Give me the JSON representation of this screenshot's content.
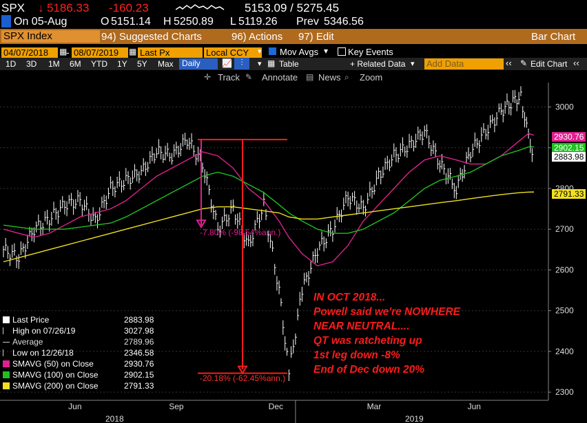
{
  "header": {
    "ticker": "SPX",
    "last": "5186.33",
    "change": "-160.23",
    "bid_ask": "5153.09 / 5275.45",
    "date_label": "On 05-Aug",
    "open_label": "O",
    "open": "5151.14",
    "high_label": "H",
    "high": "5250.89",
    "low_label": "L",
    "low": "5119.26",
    "prev_label": "Prev",
    "prev": "5346.56"
  },
  "menu": {
    "security": "SPX Index",
    "suggested": "94) Suggested Charts",
    "actions": "96) Actions",
    "edit": "97) Edit",
    "bar_chart": "Bar Chart"
  },
  "controls": {
    "start_date": "04/07/2018",
    "end_date": "08/07/2019",
    "price_field": "Last Px",
    "currency": "Local CCY",
    "mov_avgs": "Mov Avgs",
    "key_events": "Key Events",
    "periods": [
      "1D",
      "3D",
      "1M",
      "6M",
      "YTD",
      "1Y",
      "5Y",
      "Max"
    ],
    "frequency": "Daily",
    "table": "Table",
    "related": "+ Related Data",
    "add_data": "Add Data",
    "edit_chart": "Edit Chart",
    "track": "Track",
    "annotate": "Annotate",
    "news": "News",
    "zoom": "Zoom"
  },
  "legend": [
    {
      "label": "Last Price",
      "value": "2883.98",
      "color": "#ffffff"
    },
    {
      "label": "High on 07/26/19",
      "value": "3027.98",
      "color": "none"
    },
    {
      "label": "Average",
      "value": "2789.96",
      "color": "none"
    },
    {
      "label": "Low on 12/26/18",
      "value": "2346.58",
      "color": "none"
    },
    {
      "label": "SMAVG (50)  on Close",
      "value": "2930.76",
      "color": "#e0208f"
    },
    {
      "label": "SMAVG (100)  on Close",
      "value": "2902.15",
      "color": "#20c020"
    },
    {
      "label": "SMAVG (200)  on Close",
      "value": "2791.33",
      "color": "#f0e020"
    }
  ],
  "annotations": {
    "oct_drop": "-7.80% (-98.54%ann.)",
    "dec_drop": "-20.18% (-62.45%ann.)",
    "text_lines": [
      "IN OCT 2018...",
      "Powell said we're NOWHERE",
      "NEAR NEUTRAL....",
      "QT was ratcheting up",
      "1st leg down -8%",
      "End of Dec down 20%"
    ]
  },
  "chart_data": {
    "type": "line",
    "title": "SPX Index",
    "xlabel": "",
    "ylabel": "",
    "ylim": [
      2280,
      3060
    ],
    "y_ticks": [
      2300,
      2400,
      2500,
      2600,
      2700,
      2800,
      2900,
      3000
    ],
    "x_ticks": [
      "Jun",
      "Sep",
      "Dec",
      "Mar",
      "Jun"
    ],
    "x_year_labels": [
      "2018",
      "2019"
    ],
    "grid": true,
    "dates": [
      "2018-04-09",
      "2018-04-23",
      "2018-05-07",
      "2018-05-21",
      "2018-06-04",
      "2018-06-18",
      "2018-07-02",
      "2018-07-16",
      "2018-07-30",
      "2018-08-13",
      "2018-08-27",
      "2018-09-10",
      "2018-09-24",
      "2018-10-08",
      "2018-10-22",
      "2018-11-05",
      "2018-11-19",
      "2018-12-03",
      "2018-12-17",
      "2018-12-26",
      "2019-01-07",
      "2019-01-21",
      "2019-02-04",
      "2019-02-18",
      "2019-03-04",
      "2019-03-18",
      "2019-04-01",
      "2019-04-15",
      "2019-04-29",
      "2019-05-13",
      "2019-05-28",
      "2019-06-10",
      "2019-06-24",
      "2019-07-08",
      "2019-07-26",
      "2019-08-02",
      "2019-08-07"
    ],
    "series": [
      {
        "name": "Last Price",
        "values": [
          2650,
          2630,
          2700,
          2725,
          2760,
          2770,
          2720,
          2800,
          2820,
          2840,
          2890,
          2880,
          2920,
          2860,
          2700,
          2750,
          2660,
          2760,
          2550,
          2346.58,
          2550,
          2650,
          2700,
          2780,
          2750,
          2830,
          2880,
          2905,
          2940,
          2860,
          2800,
          2890,
          2940,
          2990,
          3027.98,
          2920,
          2883.98
        ]
      },
      {
        "name": "SMAVG (50)",
        "values": [
          2700,
          2690,
          2680,
          2690,
          2710,
          2730,
          2740,
          2750,
          2770,
          2800,
          2830,
          2850,
          2870,
          2890,
          2880,
          2850,
          2800,
          2770,
          2720,
          2680,
          2640,
          2610,
          2620,
          2660,
          2720,
          2760,
          2800,
          2840,
          2870,
          2880,
          2870,
          2860,
          2860,
          2880,
          2920,
          2935,
          2930.76
        ]
      },
      {
        "name": "SMAVG (100)",
        "values": [
          2710,
          2705,
          2700,
          2700,
          2700,
          2705,
          2710,
          2715,
          2730,
          2750,
          2770,
          2790,
          2810,
          2830,
          2840,
          2830,
          2810,
          2790,
          2760,
          2740,
          2720,
          2700,
          2690,
          2690,
          2700,
          2720,
          2740,
          2770,
          2800,
          2820,
          2830,
          2840,
          2860,
          2880,
          2895,
          2902,
          2902.15
        ]
      },
      {
        "name": "SMAVG (200)",
        "values": [
          2620,
          2630,
          2640,
          2650,
          2660,
          2670,
          2680,
          2690,
          2700,
          2710,
          2720,
          2730,
          2740,
          2750,
          2755,
          2755,
          2750,
          2745,
          2740,
          2730,
          2725,
          2725,
          2730,
          2735,
          2740,
          2745,
          2750,
          2755,
          2760,
          2765,
          2770,
          2775,
          2780,
          2785,
          2790,
          2791,
          2791.33
        ]
      }
    ],
    "price_tags": [
      "2930.76",
      "2902.15",
      "2883.98",
      "2791.33"
    ]
  }
}
